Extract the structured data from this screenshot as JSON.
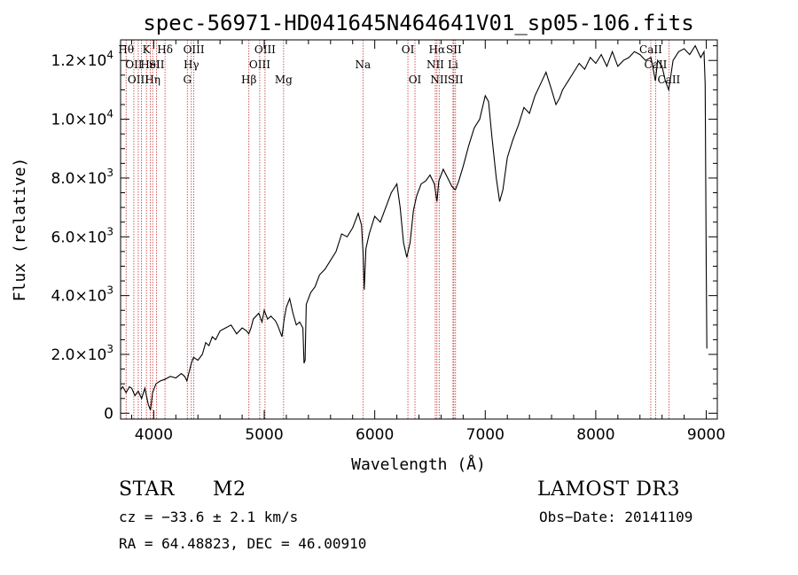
{
  "chart_data": {
    "type": "line",
    "title": "spec-56971-HD041645N464641V01_sp05-106.fits",
    "xlabel": "Wavelength (Å)",
    "ylabel": "Flux (relative)",
    "xlim": [
      3700,
      9100
    ],
    "ylim": [
      -200,
      12700
    ],
    "x_ticks": [
      4000,
      5000,
      6000,
      7000,
      8000,
      9000
    ],
    "y_ticks": [
      {
        "value": 0,
        "mantissa": "0",
        "exp": ""
      },
      {
        "value": 2000,
        "mantissa": "2.0×10",
        "exp": "3"
      },
      {
        "value": 4000,
        "mantissa": "4.0×10",
        "exp": "3"
      },
      {
        "value": 6000,
        "mantissa": "6.0×10",
        "exp": "3"
      },
      {
        "value": 8000,
        "mantissa": "8.0×10",
        "exp": "3"
      },
      {
        "value": 10000,
        "mantissa": "1.0×10",
        "exp": "4"
      },
      {
        "value": 12000,
        "mantissa": "1.2×10",
        "exp": "4"
      }
    ],
    "grid": false,
    "series": [
      {
        "points": [
          [
            3700,
            800
          ],
          [
            3720,
            900
          ],
          [
            3750,
            700
          ],
          [
            3780,
            900
          ],
          [
            3800,
            850
          ],
          [
            3830,
            600
          ],
          [
            3860,
            750
          ],
          [
            3890,
            500
          ],
          [
            3920,
            850
          ],
          [
            3950,
            300
          ],
          [
            3970,
            100
          ],
          [
            3990,
            700
          ],
          [
            4020,
            1000
          ],
          [
            4060,
            1100
          ],
          [
            4100,
            1150
          ],
          [
            4150,
            1250
          ],
          [
            4200,
            1200
          ],
          [
            4250,
            1350
          ],
          [
            4280,
            1250
          ],
          [
            4300,
            1100
          ],
          [
            4320,
            1400
          ],
          [
            4340,
            1700
          ],
          [
            4360,
            1900
          ],
          [
            4400,
            1800
          ],
          [
            4440,
            2000
          ],
          [
            4470,
            2400
          ],
          [
            4500,
            2300
          ],
          [
            4530,
            2600
          ],
          [
            4560,
            2500
          ],
          [
            4600,
            2800
          ],
          [
            4650,
            2900
          ],
          [
            4700,
            3000
          ],
          [
            4750,
            2700
          ],
          [
            4800,
            2900
          ],
          [
            4840,
            2800
          ],
          [
            4860,
            2700
          ],
          [
            4880,
            2900
          ],
          [
            4900,
            3200
          ],
          [
            4950,
            3400
          ],
          [
            4980,
            3100
          ],
          [
            5000,
            3500
          ],
          [
            5030,
            3200
          ],
          [
            5060,
            3300
          ],
          [
            5100,
            3150
          ],
          [
            5120,
            3000
          ],
          [
            5160,
            2600
          ],
          [
            5180,
            3200
          ],
          [
            5200,
            3600
          ],
          [
            5230,
            3900
          ],
          [
            5260,
            3400
          ],
          [
            5290,
            3000
          ],
          [
            5320,
            3100
          ],
          [
            5350,
            2900
          ],
          [
            5360,
            1700
          ],
          [
            5370,
            1800
          ],
          [
            5380,
            3700
          ],
          [
            5420,
            4100
          ],
          [
            5460,
            4300
          ],
          [
            5500,
            4700
          ],
          [
            5550,
            4900
          ],
          [
            5600,
            5200
          ],
          [
            5650,
            5500
          ],
          [
            5700,
            6100
          ],
          [
            5750,
            6000
          ],
          [
            5800,
            6300
          ],
          [
            5850,
            6800
          ],
          [
            5880,
            6400
          ],
          [
            5895,
            5400
          ],
          [
            5905,
            4200
          ],
          [
            5920,
            5600
          ],
          [
            5950,
            6100
          ],
          [
            6000,
            6700
          ],
          [
            6050,
            6500
          ],
          [
            6100,
            7000
          ],
          [
            6150,
            7500
          ],
          [
            6200,
            7800
          ],
          [
            6230,
            7000
          ],
          [
            6260,
            5800
          ],
          [
            6290,
            5300
          ],
          [
            6320,
            5800
          ],
          [
            6350,
            6900
          ],
          [
            6380,
            7400
          ],
          [
            6420,
            7800
          ],
          [
            6460,
            7900
          ],
          [
            6500,
            8100
          ],
          [
            6540,
            7800
          ],
          [
            6563,
            7200
          ],
          [
            6580,
            7900
          ],
          [
            6620,
            8300
          ],
          [
            6660,
            8000
          ],
          [
            6700,
            7700
          ],
          [
            6730,
            7600
          ],
          [
            6760,
            7900
          ],
          [
            6800,
            8400
          ],
          [
            6850,
            9100
          ],
          [
            6900,
            9700
          ],
          [
            6950,
            10000
          ],
          [
            7000,
            10800
          ],
          [
            7030,
            10600
          ],
          [
            7060,
            9400
          ],
          [
            7100,
            8000
          ],
          [
            7130,
            7200
          ],
          [
            7160,
            7600
          ],
          [
            7200,
            8700
          ],
          [
            7250,
            9300
          ],
          [
            7300,
            9800
          ],
          [
            7350,
            10400
          ],
          [
            7400,
            10200
          ],
          [
            7450,
            10800
          ],
          [
            7500,
            11200
          ],
          [
            7550,
            11600
          ],
          [
            7600,
            11000
          ],
          [
            7640,
            10500
          ],
          [
            7670,
            10700
          ],
          [
            7700,
            11000
          ],
          [
            7750,
            11300
          ],
          [
            7800,
            11600
          ],
          [
            7850,
            11900
          ],
          [
            7900,
            11700
          ],
          [
            7950,
            12100
          ],
          [
            8000,
            11900
          ],
          [
            8050,
            12200
          ],
          [
            8100,
            11800
          ],
          [
            8150,
            12300
          ],
          [
            8200,
            11800
          ],
          [
            8250,
            12000
          ],
          [
            8300,
            12100
          ],
          [
            8350,
            12300
          ],
          [
            8400,
            12200
          ],
          [
            8450,
            12000
          ],
          [
            8500,
            12100
          ],
          [
            8540,
            11300
          ],
          [
            8560,
            12000
          ],
          [
            8600,
            11800
          ],
          [
            8630,
            11300
          ],
          [
            8660,
            11000
          ],
          [
            8700,
            12000
          ],
          [
            8750,
            12300
          ],
          [
            8800,
            12400
          ],
          [
            8850,
            12200
          ],
          [
            8900,
            12500
          ],
          [
            8950,
            12100
          ],
          [
            8980,
            12300
          ],
          [
            8990,
            11200
          ],
          [
            9000,
            5000
          ],
          [
            9005,
            2200
          ]
        ]
      }
    ],
    "lines": [
      {
        "wl": 3750,
        "row": 0,
        "label": "Hθ"
      },
      {
        "wl": 3820,
        "row": 1,
        "label": "OII"
      },
      {
        "wl": 3860,
        "row": 2,
        "label": "OIII"
      },
      {
        "wl": 3889,
        "row": 0,
        "label": ""
      },
      {
        "wl": 3934,
        "row": 0,
        "label": "K"
      },
      {
        "wl": 3969,
        "row": 1,
        "label": "HeI"
      },
      {
        "wl": 3990,
        "row": 2,
        "label": "Hη"
      },
      {
        "wl": 4026,
        "row": 1,
        "label": "SII"
      },
      {
        "wl": 4102,
        "row": 0,
        "label": "Hδ"
      },
      {
        "wl": 4304,
        "row": 2,
        "label": "G"
      },
      {
        "wl": 4340,
        "row": 1,
        "label": "Hγ"
      },
      {
        "wl": 4363,
        "row": 0,
        "label": "OIII"
      },
      {
        "wl": 4861,
        "row": 2,
        "label": "Hβ"
      },
      {
        "wl": 4959,
        "row": 1,
        "label": "OIII"
      },
      {
        "wl": 5007,
        "row": 0,
        "label": "OIII"
      },
      {
        "wl": 5175,
        "row": 2,
        "label": "Mg"
      },
      {
        "wl": 5893,
        "row": 1,
        "label": "Na"
      },
      {
        "wl": 6300,
        "row": 0,
        "label": "OI"
      },
      {
        "wl": 6364,
        "row": 2,
        "label": "OI"
      },
      {
        "wl": 6548,
        "row": 1,
        "label": "NII"
      },
      {
        "wl": 6563,
        "row": 0,
        "label": "Hα"
      },
      {
        "wl": 6583,
        "row": 2,
        "label": "NII"
      },
      {
        "wl": 6708,
        "row": 1,
        "label": "Li"
      },
      {
        "wl": 6716,
        "row": 0,
        "label": "SII"
      },
      {
        "wl": 6731,
        "row": 2,
        "label": "SII"
      },
      {
        "wl": 8498,
        "row": 0,
        "label": "CaII"
      },
      {
        "wl": 8542,
        "row": 1,
        "label": "CaII"
      },
      {
        "wl": 8662,
        "row": 2,
        "label": "CaII"
      }
    ]
  },
  "info": {
    "object_class": "STAR",
    "subclass": "M2",
    "survey": "LAMOST DR3",
    "cz": "cz = −33.6 ± 2.1 km/s",
    "obs_date": "Obs−Date: 20141109",
    "coords": "RA =  64.48823, DEC =  46.00910"
  },
  "colors": {
    "line_marker": "#c03030",
    "spectrum": "#000000"
  }
}
